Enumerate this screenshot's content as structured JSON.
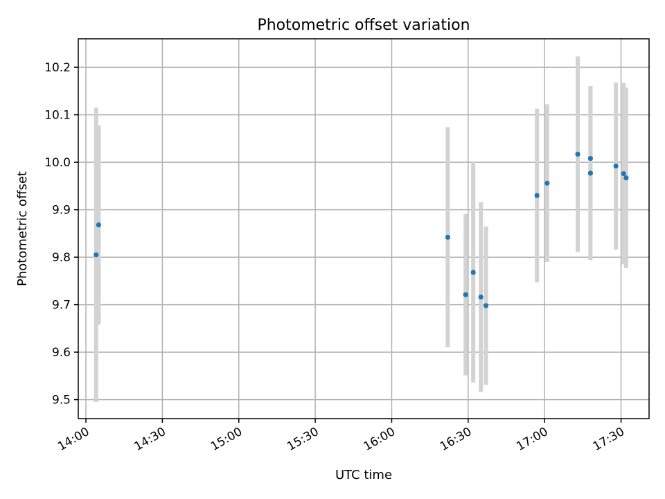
{
  "chart_data": {
    "type": "scatter",
    "title": "Photometric offset variation",
    "xlabel": "UTC time",
    "ylabel": "Photometric offset",
    "x_unit": "UTC time (HH:MM)",
    "xlim": [
      "13:57",
      "17:41"
    ],
    "ylim": [
      9.46,
      10.26
    ],
    "x_ticks": [
      "14:00",
      "14:30",
      "15:00",
      "15:30",
      "16:00",
      "16:30",
      "17:00",
      "17:30"
    ],
    "y_ticks": [
      "9.5",
      "9.6",
      "9.7",
      "9.8",
      "9.9",
      "10.0",
      "10.1",
      "10.2"
    ],
    "grid": true,
    "marker_color": "#1f77b4",
    "errorbar_color": "#d3d3d3",
    "series": [
      {
        "points": [
          {
            "t": "14:04",
            "y": 9.805,
            "err": 0.31
          },
          {
            "t": "14:05",
            "y": 9.868,
            "err": 0.21
          },
          {
            "t": "16:22",
            "y": 9.842,
            "err": 0.232
          },
          {
            "t": "16:29",
            "y": 9.721,
            "err": 0.17
          },
          {
            "t": "16:32",
            "y": 9.768,
            "err": 0.232
          },
          {
            "t": "16:35",
            "y": 9.716,
            "err": 0.2
          },
          {
            "t": "16:37",
            "y": 9.698,
            "err": 0.167
          },
          {
            "t": "16:57",
            "y": 9.93,
            "err": 0.183
          },
          {
            "t": "17:01",
            "y": 9.956,
            "err": 0.166
          },
          {
            "t": "17:13",
            "y": 10.017,
            "err": 0.206
          },
          {
            "t": "17:18",
            "y": 10.008,
            "err": 0.153
          },
          {
            "t": "17:18",
            "y": 9.977,
            "err": 0.183
          },
          {
            "t": "17:28",
            "y": 9.992,
            "err": 0.176
          },
          {
            "t": "17:31",
            "y": 9.976,
            "err": 0.191
          },
          {
            "t": "17:32",
            "y": 9.967,
            "err": 0.19
          }
        ]
      }
    ]
  }
}
